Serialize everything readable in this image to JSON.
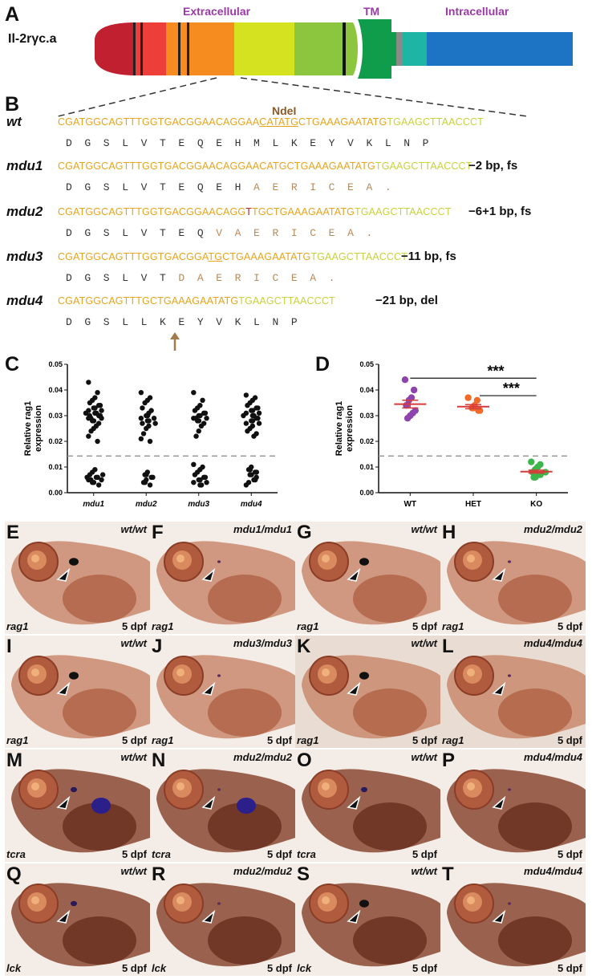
{
  "panelA": {
    "label": "A",
    "protein": "Il-2rγc.a",
    "regions": [
      "Extracellular",
      "TM",
      "Intracellular"
    ],
    "colors": {
      "c1": "#c0202f",
      "c2": "#ee3e3a",
      "c3": "#f68b1f",
      "c4": "#d4e21f",
      "c5": "#8cc63f",
      "tm": "#0f9d4b",
      "gray": "#8a8a8a",
      "teal": "#1fb5a5",
      "blue": "#1d74c4"
    }
  },
  "panelB": {
    "label": "B",
    "site": "NdeI",
    "rows": [
      {
        "name": "wt",
        "seq_a": "CGATGGCAGTTTGGTGACGGAACAGGAA",
        "seq_b": "CATATG",
        "seq_c": "CTGAAAGAATATG",
        "seq_d": "TGAAGCTTAACCCT",
        "aa_black": "D  G  S  L  V  T  E  Q  E  H  M  L  K  E  Y  V  K  L  N  P",
        "aa_brown": "",
        "mutation": ""
      },
      {
        "name": "mdu1",
        "seq_a": "CGATGGCAGTTTGGTGACGGAACAGGAACATGCTGAAAGAATATG",
        "seq_b": "",
        "seq_c": "",
        "seq_d": "TGAAGCTTAACCCT",
        "aa_black": "D  G  S  L  V  T  E  Q  E  H",
        "aa_brown": "  A  E  R  I  C  E  A  .",
        "mutation": "−2 bp, fs"
      },
      {
        "name": "mdu2",
        "seq_a": "CGATGGCAGTTTGGTGACGGAACAGG",
        "seq_b": "T",
        "seq_c": "TGCTGAAAGAATATG",
        "seq_d": "TGAAGCTTAACCCT",
        "aa_black": "D  G  S  L  V  T  E  Q",
        "aa_brown": "  V  A  E  R  I  C  E  A  .",
        "mutation": "−6+1 bp, fs"
      },
      {
        "name": "mdu3",
        "seq_a": "CGATGGCAGTTTGGTGACGGA",
        "seq_b": "TG",
        "seq_c": "CTGAAAGAATATG",
        "seq_d": "TGAAGCTTAACCCT",
        "aa_black": "D  G  S  L  V  T",
        "aa_brown": "  D  A  E  R  I  C  E  A  .",
        "mutation": "−11 bp, fs"
      },
      {
        "name": "mdu4",
        "seq_a": "CGATGGCAGTTTGCTGAAAGAATATG",
        "seq_b": "",
        "seq_c": "",
        "seq_d": "TGAAGCTTAACCCT",
        "aa_black": "D  G  S  L  L  K  E  Y  V  K  L  N  P",
        "aa_brown": "",
        "mutation": "−21 bp, del"
      }
    ]
  },
  "chart_data": [
    {
      "type": "scatter",
      "label": "C",
      "ylabel_line1": "Relative rag1",
      "ylabel_line2": "expression",
      "categories": [
        "mdu1",
        "mdu2",
        "mdu3",
        "mdu4"
      ],
      "yticks": [
        "0.00",
        "0.01",
        "0.02",
        "0.03",
        "0.04",
        "0.05"
      ],
      "ylim": [
        0,
        0.05
      ],
      "threshold": 0.0143,
      "series": [
        {
          "name": "mdu1",
          "values": [
            0.043,
            0.039,
            0.037,
            0.036,
            0.035,
            0.034,
            0.034,
            0.033,
            0.033,
            0.032,
            0.032,
            0.031,
            0.031,
            0.031,
            0.03,
            0.03,
            0.03,
            0.03,
            0.029,
            0.029,
            0.029,
            0.028,
            0.028,
            0.027,
            0.026,
            0.025,
            0.024,
            0.022,
            0.02,
            0.009,
            0.008,
            0.007,
            0.007,
            0.006,
            0.006,
            0.006,
            0.005,
            0.005,
            0.005,
            0.004,
            0.004,
            0.003
          ]
        },
        {
          "name": "mdu2",
          "values": [
            0.039,
            0.037,
            0.036,
            0.035,
            0.033,
            0.032,
            0.031,
            0.03,
            0.03,
            0.029,
            0.029,
            0.028,
            0.028,
            0.027,
            0.027,
            0.026,
            0.025,
            0.023,
            0.021,
            0.02,
            0.008,
            0.007,
            0.007,
            0.006,
            0.006,
            0.005,
            0.004,
            0.004,
            0.003
          ]
        },
        {
          "name": "mdu3",
          "values": [
            0.039,
            0.036,
            0.034,
            0.033,
            0.032,
            0.031,
            0.031,
            0.03,
            0.03,
            0.029,
            0.029,
            0.029,
            0.028,
            0.028,
            0.027,
            0.026,
            0.024,
            0.022,
            0.011,
            0.01,
            0.009,
            0.008,
            0.007,
            0.006,
            0.006,
            0.005,
            0.005,
            0.004,
            0.004,
            0.003,
            0.003
          ]
        },
        {
          "name": "mdu4",
          "values": [
            0.038,
            0.037,
            0.036,
            0.035,
            0.034,
            0.033,
            0.033,
            0.032,
            0.032,
            0.031,
            0.031,
            0.03,
            0.03,
            0.03,
            0.029,
            0.029,
            0.028,
            0.028,
            0.027,
            0.027,
            0.026,
            0.025,
            0.024,
            0.023,
            0.022,
            0.01,
            0.009,
            0.009,
            0.008,
            0.008,
            0.007,
            0.007,
            0.006,
            0.005,
            0.005,
            0.004,
            0.003
          ]
        }
      ]
    },
    {
      "type": "scatter",
      "label": "D",
      "ylabel_line1": "Relative rag1",
      "ylabel_line2": "expression",
      "categories": [
        "WT",
        "HET",
        "KO"
      ],
      "yticks": [
        "0.00",
        "0.01",
        "0.02",
        "0.03",
        "0.04",
        "0.05"
      ],
      "ylim": [
        0,
        0.05
      ],
      "threshold": 0.0143,
      "significance": [
        "***",
        "***"
      ],
      "series": [
        {
          "name": "WT",
          "color": "#8e44ad",
          "values": [
            0.044,
            0.04,
            0.037,
            0.036,
            0.034,
            0.032,
            0.031,
            0.03,
            0.029
          ],
          "mean": 0.0345,
          "sem": 0.0015
        },
        {
          "name": "HET",
          "color": "#f06a2a",
          "values": [
            0.037,
            0.036,
            0.034,
            0.033,
            0.033,
            0.032,
            0.032
          ],
          "mean": 0.0335,
          "sem": 0.0008
        },
        {
          "name": "KO",
          "color": "#3cb54a",
          "values": [
            0.012,
            0.011,
            0.01,
            0.009,
            0.008,
            0.008,
            0.007,
            0.007,
            0.006,
            0.006
          ],
          "mean": 0.0082,
          "sem": 0.0006
        }
      ]
    }
  ],
  "embryos": [
    {
      "label": "E",
      "genotype": "wt/wt",
      "gene": "rag1",
      "stage": "5 dpf",
      "thymus": "strong"
    },
    {
      "label": "F",
      "genotype": "mdu1/mdu1",
      "gene": "rag1",
      "stage": "",
      "thymus": "weak"
    },
    {
      "label": "G",
      "genotype": "wt/wt",
      "gene": "rag1",
      "stage": "5 dpf",
      "thymus": "strong"
    },
    {
      "label": "H",
      "genotype": "mdu2/mdu2",
      "gene": "rag1",
      "stage": "5 dpf",
      "thymus": "weak"
    },
    {
      "label": "I",
      "genotype": "wt/wt",
      "gene": "rag1",
      "stage": "5 dpf",
      "thymus": "strong"
    },
    {
      "label": "J",
      "genotype": "mdu3/mdu3",
      "gene": "rag1",
      "stage": "5 dpf",
      "thymus": "weak"
    },
    {
      "label": "K",
      "genotype": "wt/wt",
      "gene": "rag1",
      "stage": "5 dpf",
      "thymus": "strong"
    },
    {
      "label": "L",
      "genotype": "mdu4/mdu4",
      "gene": "rag1",
      "stage": "5 dpf",
      "thymus": "weak"
    },
    {
      "label": "M",
      "genotype": "wt/wt",
      "gene": "tcra",
      "stage": "5 dpf",
      "thymus": "medium"
    },
    {
      "label": "N",
      "genotype": "mdu2/mdu2",
      "gene": "tcra",
      "stage": "5 dpf",
      "thymus": "weak"
    },
    {
      "label": "O",
      "genotype": "wt/wt",
      "gene": "tcra",
      "stage": "5 dpf",
      "thymus": "medium"
    },
    {
      "label": "P",
      "genotype": "mdu4/mdu4",
      "gene": "",
      "stage": "5 dpf",
      "thymus": "weak"
    },
    {
      "label": "Q",
      "genotype": "wt/wt",
      "gene": "lck",
      "stage": "5 dpf",
      "thymus": "medium"
    },
    {
      "label": "R",
      "genotype": "mdu2/mdu2",
      "gene": "lck",
      "stage": "5 dpf",
      "thymus": "weak"
    },
    {
      "label": "S",
      "genotype": "wt/wt",
      "gene": "lck",
      "stage": "5 dpf",
      "thymus": "strong"
    },
    {
      "label": "T",
      "genotype": "mdu4/mdu4",
      "gene": "",
      "stage": "5 dpf",
      "thymus": "weak"
    }
  ]
}
